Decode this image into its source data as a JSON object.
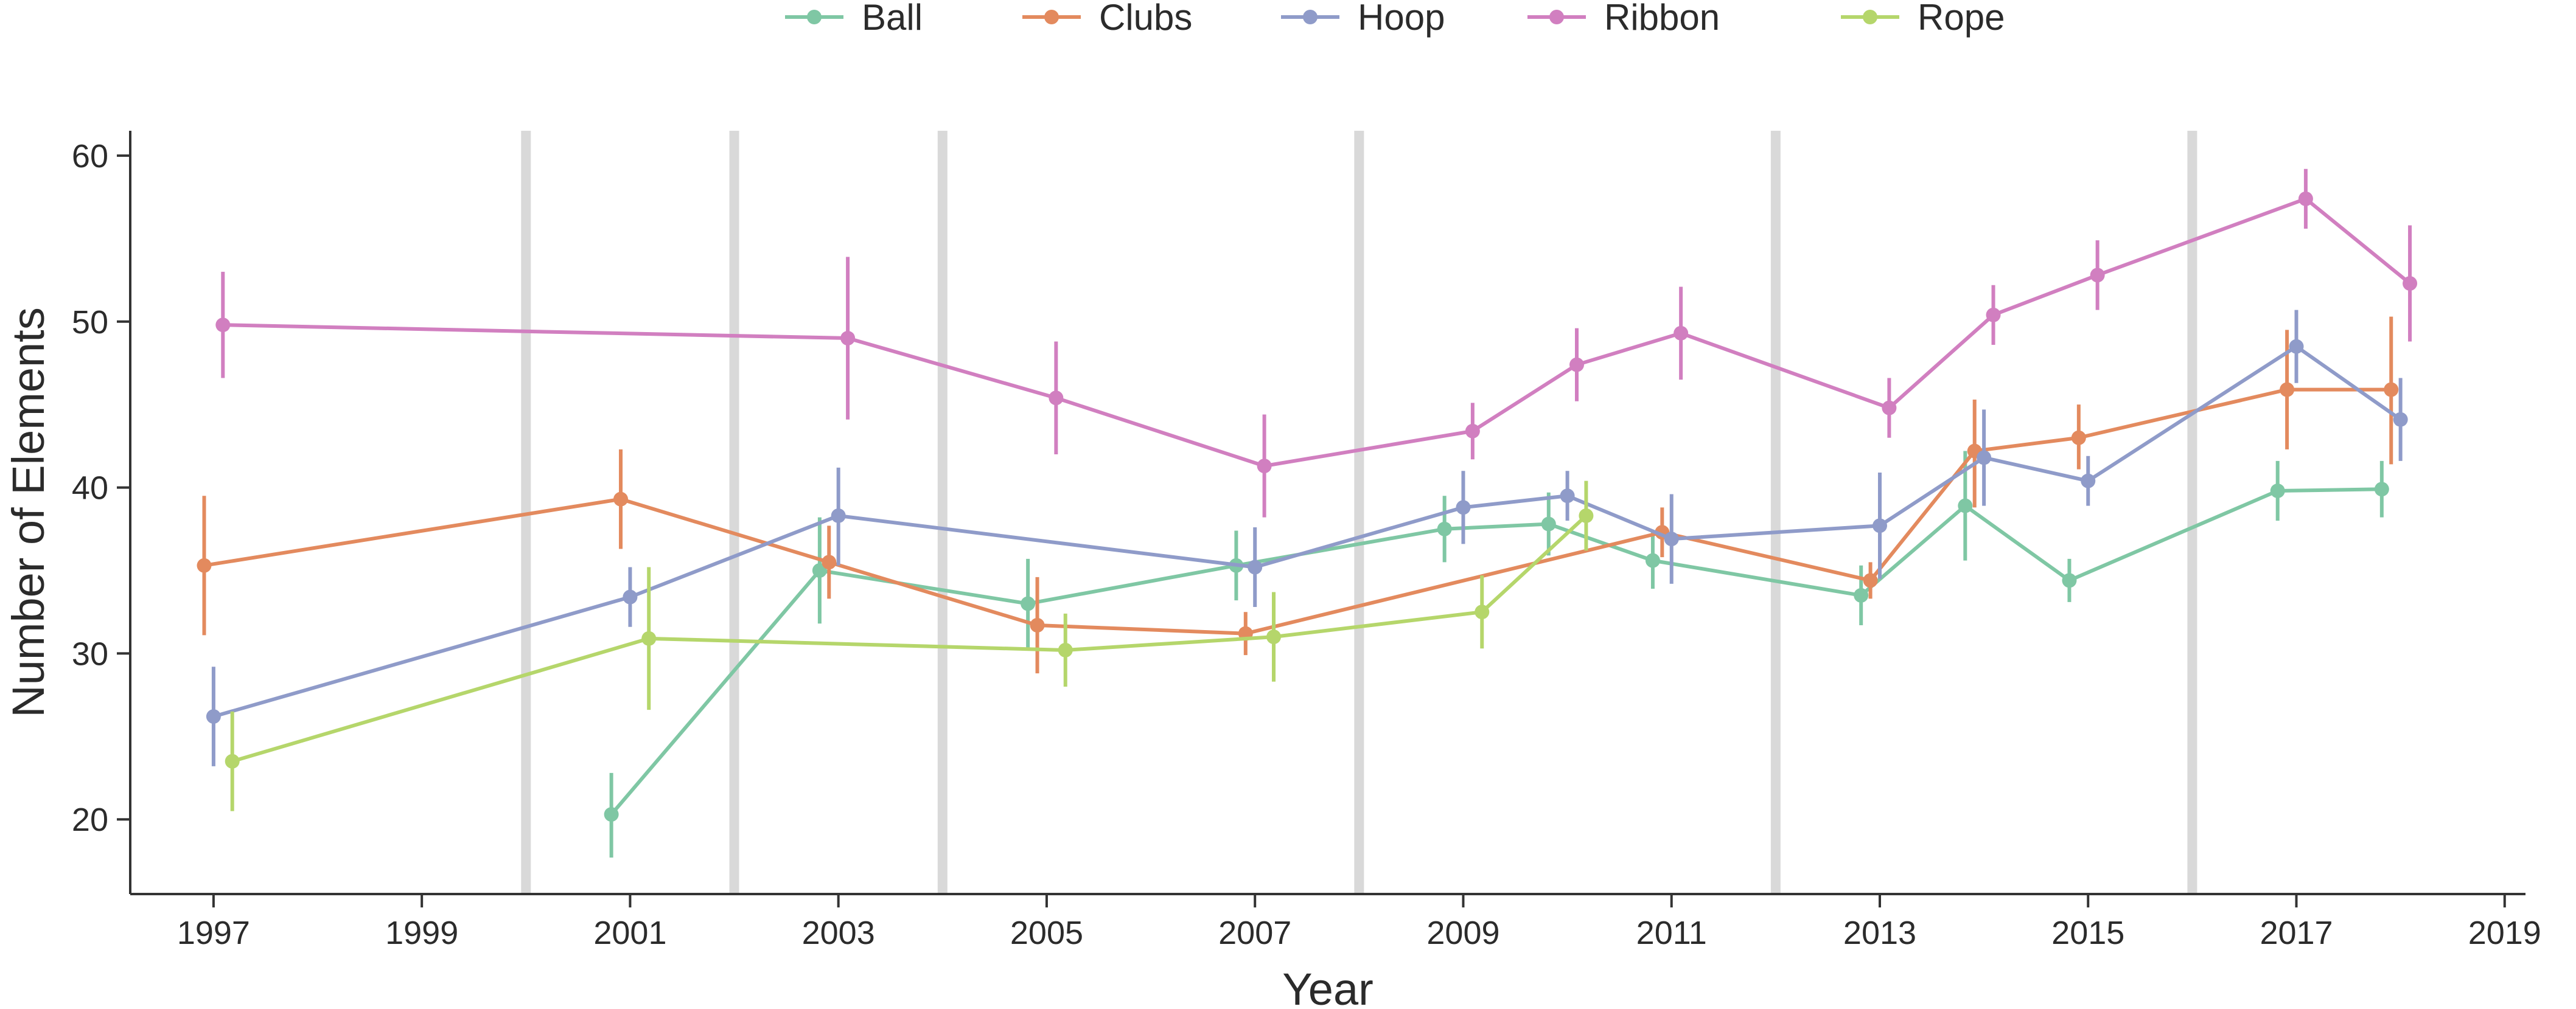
{
  "chart_data": {
    "type": "line",
    "title": "",
    "xlabel": "Year",
    "ylabel": "Number of Elements",
    "xlim": [
      1996.2,
      2019.2
    ],
    "ylim": [
      15.5,
      61.5
    ],
    "x_ticks": [
      1997,
      1999,
      2001,
      2003,
      2005,
      2007,
      2009,
      2011,
      2013,
      2015,
      2017,
      2019
    ],
    "y_ticks": [
      20,
      30,
      40,
      50,
      60
    ],
    "grid": false,
    "legend_position": "top",
    "vertical_reference_lines": [
      2000,
      2002,
      2004,
      2008,
      2012,
      2016
    ],
    "reference_line_color": "#d9d9d9",
    "series": [
      {
        "name": "Ball",
        "color": "#7fc7a4",
        "points": [
          {
            "x": 2001,
            "y": 20.3,
            "err_low": 17.7,
            "err_high": 22.8
          },
          {
            "x": 2003,
            "y": 35.0,
            "err_low": 31.8,
            "err_high": 38.2
          },
          {
            "x": 2005,
            "y": 33.0,
            "err_low": 30.3,
            "err_high": 35.7
          },
          {
            "x": 2007,
            "y": 35.3,
            "err_low": 33.2,
            "err_high": 37.4
          },
          {
            "x": 2009,
            "y": 37.5,
            "err_low": 35.5,
            "err_high": 39.5
          },
          {
            "x": 2010,
            "y": 37.8,
            "err_low": 35.9,
            "err_high": 39.7
          },
          {
            "x": 2011,
            "y": 35.6,
            "err_low": 33.9,
            "err_high": 37.3
          },
          {
            "x": 2013,
            "y": 33.5,
            "err_low": 31.7,
            "err_high": 35.3
          },
          {
            "x": 2014,
            "y": 38.9,
            "err_low": 35.6,
            "err_high": 42.2
          },
          {
            "x": 2015,
            "y": 34.4,
            "err_low": 33.1,
            "err_high": 35.7
          },
          {
            "x": 2017,
            "y": 39.8,
            "err_low": 38.0,
            "err_high": 41.6
          },
          {
            "x": 2018,
            "y": 39.9,
            "err_low": 38.2,
            "err_high": 41.6
          }
        ]
      },
      {
        "name": "Clubs",
        "color": "#e38a5e",
        "points": [
          {
            "x": 1997,
            "y": 35.3,
            "err_low": 31.1,
            "err_high": 39.5
          },
          {
            "x": 2001,
            "y": 39.3,
            "err_low": 36.3,
            "err_high": 42.3
          },
          {
            "x": 2003,
            "y": 35.5,
            "err_low": 33.3,
            "err_high": 37.7
          },
          {
            "x": 2005,
            "y": 31.7,
            "err_low": 28.8,
            "err_high": 34.6
          },
          {
            "x": 2007,
            "y": 31.2,
            "err_low": 29.9,
            "err_high": 32.5
          },
          {
            "x": 2011,
            "y": 37.3,
            "err_low": 35.8,
            "err_high": 38.8
          },
          {
            "x": 2013,
            "y": 34.4,
            "err_low": 33.3,
            "err_high": 35.5
          },
          {
            "x": 2014,
            "y": 42.2,
            "err_low": 38.8,
            "err_high": 45.3
          },
          {
            "x": 2015,
            "y": 43.0,
            "err_low": 41.1,
            "err_high": 45.0
          },
          {
            "x": 2017,
            "y": 45.9,
            "err_low": 42.3,
            "err_high": 49.5
          },
          {
            "x": 2018,
            "y": 45.9,
            "err_low": 41.4,
            "err_high": 50.3
          }
        ]
      },
      {
        "name": "Hoop",
        "color": "#8f9bc9",
        "points": [
          {
            "x": 1997,
            "y": 26.2,
            "err_low": 23.2,
            "err_high": 29.2
          },
          {
            "x": 2001,
            "y": 33.4,
            "err_low": 31.6,
            "err_high": 35.2
          },
          {
            "x": 2003,
            "y": 38.3,
            "err_low": 35.3,
            "err_high": 41.2
          },
          {
            "x": 2007,
            "y": 35.2,
            "err_low": 32.8,
            "err_high": 37.6
          },
          {
            "x": 2009,
            "y": 38.8,
            "err_low": 36.6,
            "err_high": 41.0
          },
          {
            "x": 2010,
            "y": 39.5,
            "err_low": 38.0,
            "err_high": 41.0
          },
          {
            "x": 2011,
            "y": 36.9,
            "err_low": 34.2,
            "err_high": 39.6
          },
          {
            "x": 2013,
            "y": 37.7,
            "err_low": 34.5,
            "err_high": 40.9
          },
          {
            "x": 2014,
            "y": 41.8,
            "err_low": 38.9,
            "err_high": 44.7
          },
          {
            "x": 2015,
            "y": 40.4,
            "err_low": 38.9,
            "err_high": 41.9
          },
          {
            "x": 2017,
            "y": 48.5,
            "err_low": 46.3,
            "err_high": 50.7
          },
          {
            "x": 2018,
            "y": 44.1,
            "err_low": 41.6,
            "err_high": 46.6
          }
        ]
      },
      {
        "name": "Ribbon",
        "color": "#d17fc0",
        "points": [
          {
            "x": 1997,
            "y": 49.8,
            "err_low": 46.6,
            "err_high": 53.0
          },
          {
            "x": 2003,
            "y": 49.0,
            "err_low": 44.1,
            "err_high": 53.9
          },
          {
            "x": 2005,
            "y": 45.4,
            "err_low": 42.0,
            "err_high": 48.8
          },
          {
            "x": 2007,
            "y": 41.3,
            "err_low": 38.2,
            "err_high": 44.4
          },
          {
            "x": 2009,
            "y": 43.4,
            "err_low": 41.7,
            "err_high": 45.1
          },
          {
            "x": 2010,
            "y": 47.4,
            "err_low": 45.2,
            "err_high": 49.6
          },
          {
            "x": 2011,
            "y": 49.3,
            "err_low": 46.5,
            "err_high": 52.1
          },
          {
            "x": 2013,
            "y": 44.8,
            "err_low": 43.0,
            "err_high": 46.6
          },
          {
            "x": 2014,
            "y": 50.4,
            "err_low": 48.6,
            "err_high": 52.2
          },
          {
            "x": 2015,
            "y": 52.8,
            "err_low": 50.7,
            "err_high": 54.9
          },
          {
            "x": 2017,
            "y": 57.4,
            "err_low": 55.6,
            "err_high": 59.2
          },
          {
            "x": 2018,
            "y": 52.3,
            "err_low": 48.8,
            "err_high": 55.8
          }
        ]
      },
      {
        "name": "Rope",
        "color": "#b5d66b",
        "points": [
          {
            "x": 1997,
            "y": 23.5,
            "err_low": 20.5,
            "err_high": 26.5
          },
          {
            "x": 2001,
            "y": 30.9,
            "err_low": 26.6,
            "err_high": 35.2
          },
          {
            "x": 2005,
            "y": 30.2,
            "err_low": 28.0,
            "err_high": 32.4
          },
          {
            "x": 2007,
            "y": 31.0,
            "err_low": 28.3,
            "err_high": 33.7
          },
          {
            "x": 2009,
            "y": 32.5,
            "err_low": 30.3,
            "err_high": 34.7
          },
          {
            "x": 2010,
            "y": 38.3,
            "err_low": 36.2,
            "err_high": 40.4
          }
        ]
      }
    ]
  }
}
